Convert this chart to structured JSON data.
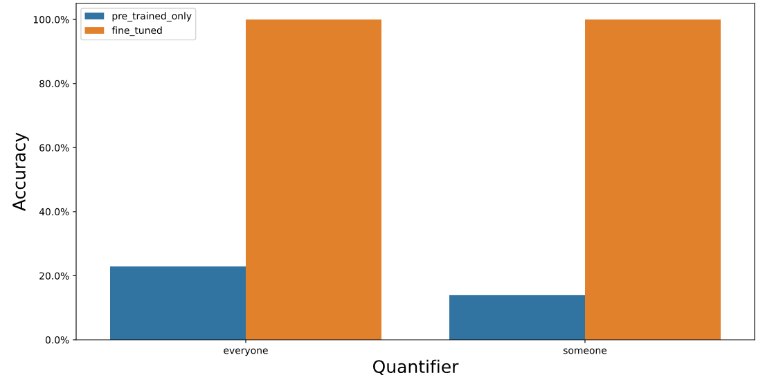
{
  "chart_data": {
    "type": "bar",
    "xlabel": "Quantifier",
    "ylabel": "Accuracy",
    "categories": [
      "everyone",
      "someone"
    ],
    "series": [
      {
        "name": "pre_trained_only",
        "color": "#3274a1",
        "values": [
          22.9,
          14.0
        ]
      },
      {
        "name": "fine_tuned",
        "color": "#e1812c",
        "values": [
          100,
          100
        ]
      }
    ],
    "ylim": [
      0,
      105
    ],
    "yticks": [
      {
        "value": 0,
        "label": "0.0%"
      },
      {
        "value": 20,
        "label": "20.0%"
      },
      {
        "value": 40,
        "label": "40.0%"
      },
      {
        "value": 60,
        "label": "60.0%"
      },
      {
        "value": 80,
        "label": "80.0%"
      },
      {
        "value": 100,
        "label": "100.0%"
      }
    ],
    "legend": "top left",
    "grid": false
  }
}
